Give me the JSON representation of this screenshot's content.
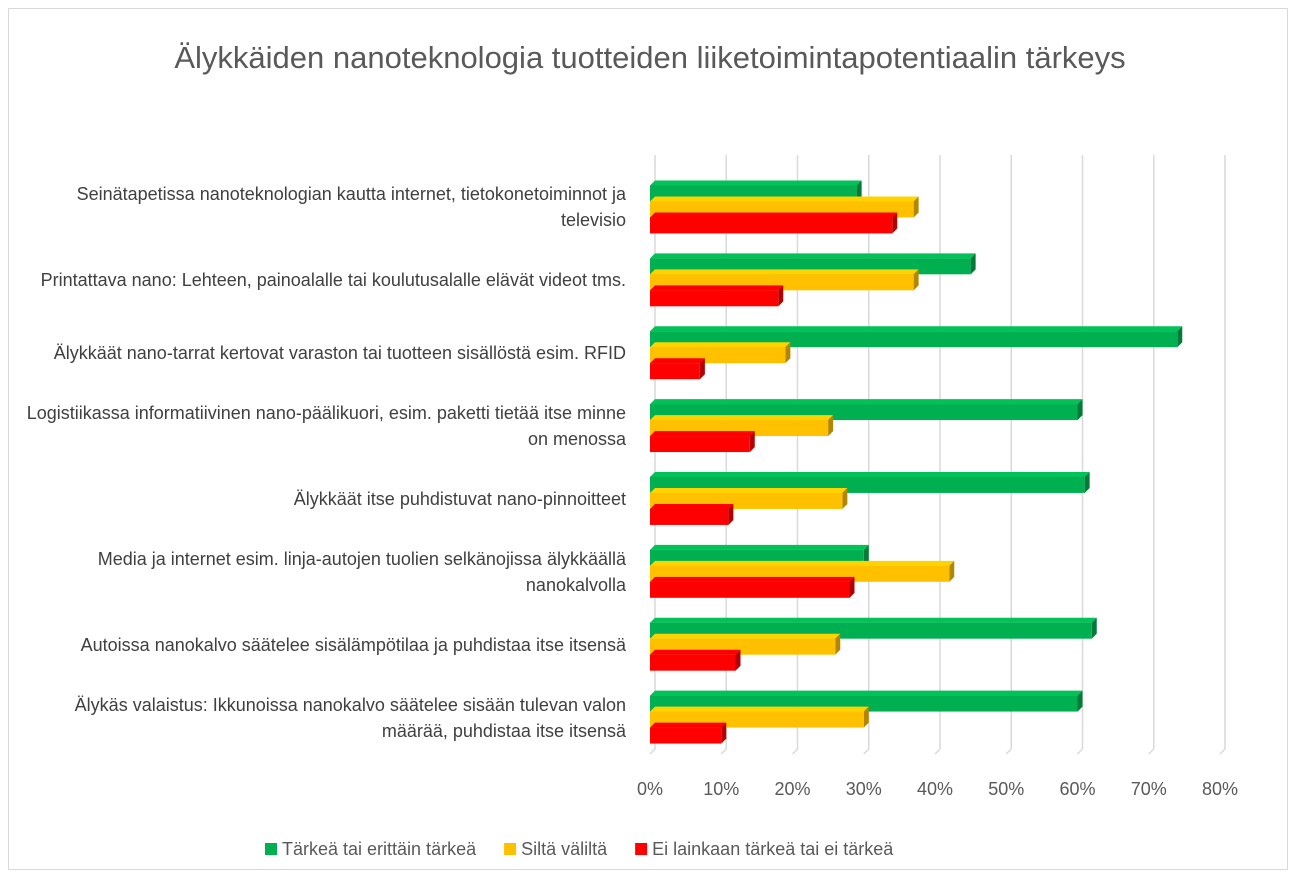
{
  "chart_data": {
    "type": "bar",
    "orientation": "horizontal",
    "title": "Älykkäiden nanoteknologia tuotteiden liiketoimintapotentiaalin tärkeys",
    "categories": [
      "Seinätapetissa nanoteknologian kautta internet, tietokonetoiminnot ja televisio",
      "Printattava nano: Lehteen, painoalalle tai koulutusalalle elävät videot tms.",
      "Älykkäät nano-tarrat kertovat varaston tai tuotteen sisällöstä esim. RFID",
      "Logistiikassa informatiivinen nano-päälikuori, esim. paketti tietää itse minne on menossa",
      "Älykkäät itse puhdistuvat nano-pinnoitteet",
      "Media ja internet esim. linja-autojen tuolien selkänojissa älykkäällä nanokalvolla",
      "Autoissa nanokalvo säätelee sisälämpötilaa ja puhdistaa itse itsensä",
      "Älykäs valaistus: Ikkunoissa nanokalvo säätelee sisään tulevan valon määrää, puhdistaa itse itsensä"
    ],
    "series": [
      {
        "name": "Tärkeä tai erittäin tärkeä",
        "color": "#00b050",
        "values": [
          29,
          45,
          74,
          60,
          61,
          30,
          62,
          60
        ]
      },
      {
        "name": "Siltä väliltä",
        "color": "#ffc000",
        "values": [
          37,
          37,
          19,
          25,
          27,
          42,
          26,
          30
        ]
      },
      {
        "name": "Ei lainkaan tärkeä tai ei tärkeä",
        "color": "#ff0000",
        "values": [
          34,
          18,
          7,
          14,
          11,
          28,
          12,
          10
        ]
      }
    ],
    "xlim": [
      0,
      80
    ],
    "xticks": [
      {
        "value": 0,
        "label": "0%"
      },
      {
        "value": 10,
        "label": "10%"
      },
      {
        "value": 20,
        "label": "20%"
      },
      {
        "value": 30,
        "label": "30%"
      },
      {
        "value": 40,
        "label": "40%"
      },
      {
        "value": 50,
        "label": "50%"
      },
      {
        "value": 60,
        "label": "60%"
      },
      {
        "value": 70,
        "label": "70%"
      },
      {
        "value": 80,
        "label": "80%"
      }
    ],
    "grid": true,
    "legend": "bottom"
  }
}
